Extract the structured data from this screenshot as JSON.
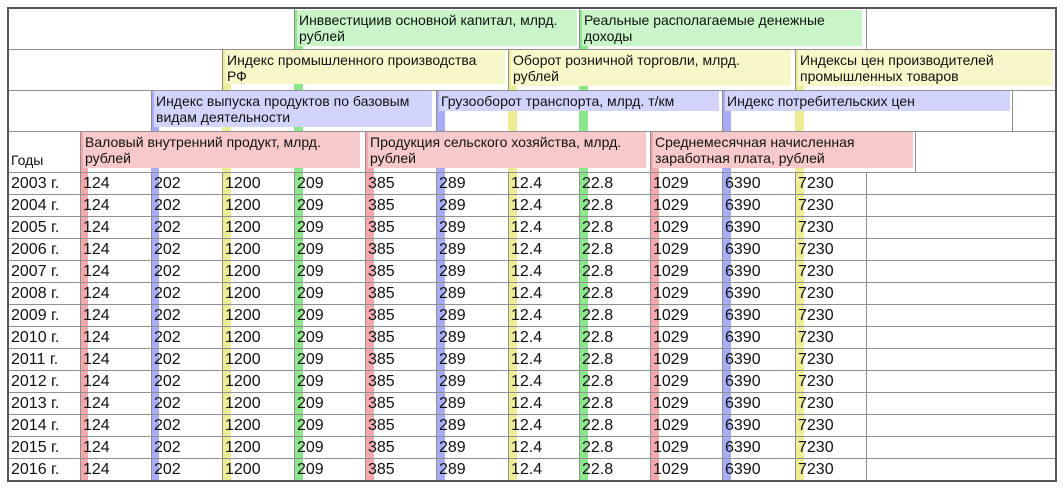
{
  "columns": [
    {
      "key": "gdp",
      "name": "Валовый внутренний продукт, млрд. рублей",
      "color": "#f4a8ac"
    },
    {
      "key": "index_basic",
      "name": "Индекс выпуска продуктов по базовым видам деятельности",
      "color": "#a9abf7"
    },
    {
      "key": "industry",
      "name": "Индекс промышленного производства РФ",
      "color": "#eded96"
    },
    {
      "key": "invest",
      "name": "Инввестициив основной капитал, млрд. рублей",
      "color": "#8ce68c"
    },
    {
      "key": "agri",
      "name": "Продукция сельского хозяйства, млрд. рублей",
      "color": "#f4a8ac"
    },
    {
      "key": "freight",
      "name": "Грузооборот транспорта, млрд. т/км",
      "color": "#a9abf7"
    },
    {
      "key": "retail",
      "name": "Оборот розничной торговли, млрд. рублей",
      "color": "#eded96"
    },
    {
      "key": "income",
      "name": "Реальные располагаемые денежные доходы",
      "color": "#8ce68c"
    },
    {
      "key": "wage",
      "name": "Среднемесячная начисленная заработная плата, рублей",
      "color": "#f4a8ac"
    },
    {
      "key": "cpi",
      "name": "Индекс потребительских цен",
      "color": "#a9abf7"
    },
    {
      "key": "ppi",
      "name": "Индексы цен производителей промышленных товаров",
      "color": "#eded96"
    }
  ],
  "years_label": "Годы",
  "rows": [
    {
      "year": "2003 г.",
      "values": [
        "124",
        "202",
        "1200",
        "209",
        "385",
        "289",
        "12.4",
        "22.8",
        "1029",
        "6390",
        "7230"
      ]
    },
    {
      "year": "2004 г.",
      "values": [
        "124",
        "202",
        "1200",
        "209",
        "385",
        "289",
        "12.4",
        "22.8",
        "1029",
        "6390",
        "7230"
      ]
    },
    {
      "year": "2005 г.",
      "values": [
        "124",
        "202",
        "1200",
        "209",
        "385",
        "289",
        "12.4",
        "22.8",
        "1029",
        "6390",
        "7230"
      ]
    },
    {
      "year": "2006 г.",
      "values": [
        "124",
        "202",
        "1200",
        "209",
        "385",
        "289",
        "12.4",
        "22.8",
        "1029",
        "6390",
        "7230"
      ]
    },
    {
      "year": "2007 г.",
      "values": [
        "124",
        "202",
        "1200",
        "209",
        "385",
        "289",
        "12.4",
        "22.8",
        "1029",
        "6390",
        "7230"
      ]
    },
    {
      "year": "2008 г.",
      "values": [
        "124",
        "202",
        "1200",
        "209",
        "385",
        "289",
        "12.4",
        "22.8",
        "1029",
        "6390",
        "7230"
      ]
    },
    {
      "year": "2009 г.",
      "values": [
        "124",
        "202",
        "1200",
        "209",
        "385",
        "289",
        "12.4",
        "22.8",
        "1029",
        "6390",
        "7230"
      ]
    },
    {
      "year": "2010 г.",
      "values": [
        "124",
        "202",
        "1200",
        "209",
        "385",
        "289",
        "12.4",
        "22.8",
        "1029",
        "6390",
        "7230"
      ]
    },
    {
      "year": "2011 г.",
      "values": [
        "124",
        "202",
        "1200",
        "209",
        "385",
        "289",
        "12.4",
        "22.8",
        "1029",
        "6390",
        "7230"
      ]
    },
    {
      "year": "2012 г.",
      "values": [
        "124",
        "202",
        "1200",
        "209",
        "385",
        "289",
        "12.4",
        "22.8",
        "1029",
        "6390",
        "7230"
      ]
    },
    {
      "year": "2013 г.",
      "values": [
        "124",
        "202",
        "1200",
        "209",
        "385",
        "289",
        "12.4",
        "22.8",
        "1029",
        "6390",
        "7230"
      ]
    },
    {
      "year": "2014 г.",
      "values": [
        "124",
        "202",
        "1200",
        "209",
        "385",
        "289",
        "12.4",
        "22.8",
        "1029",
        "6390",
        "7230"
      ]
    },
    {
      "year": "2015 г.",
      "values": [
        "124",
        "202",
        "1200",
        "209",
        "385",
        "289",
        "12.4",
        "22.8",
        "1029",
        "6390",
        "7230"
      ]
    },
    {
      "year": "2016 г.",
      "values": [
        "124",
        "202",
        "1200",
        "209",
        "385",
        "289",
        "12.4",
        "22.8",
        "1029",
        "6390",
        "7230"
      ]
    }
  ]
}
